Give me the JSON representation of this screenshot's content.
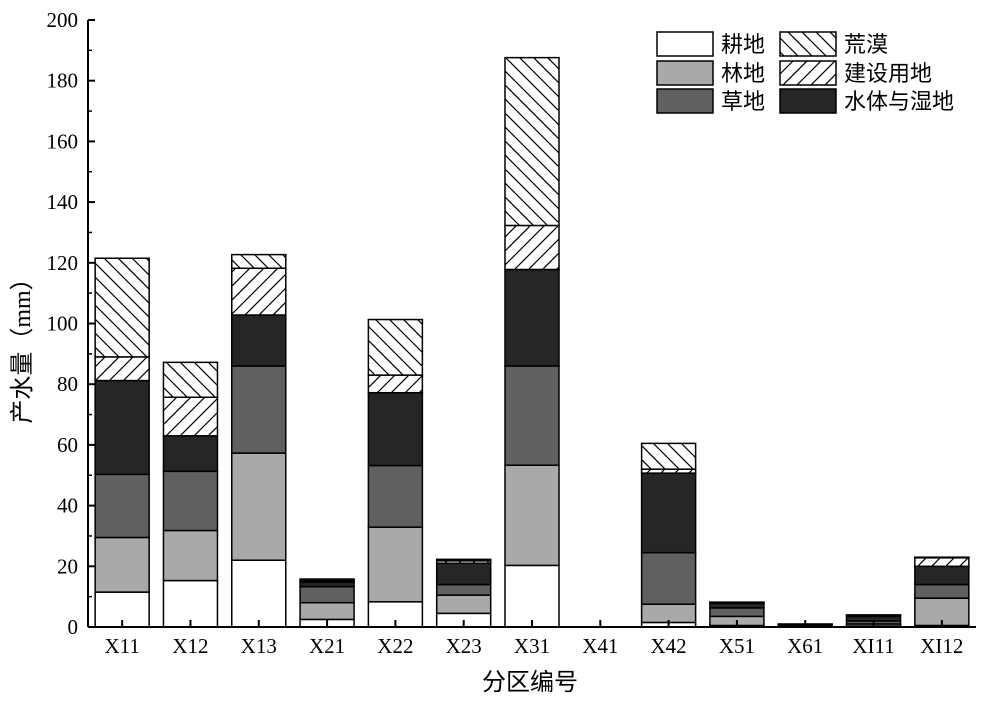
{
  "chart_data": {
    "type": "bar",
    "stacked": true,
    "xlabel": "分区编号",
    "ylabel": "产水量（mm）",
    "ylim": [
      0,
      200
    ],
    "yticks": [
      0,
      20,
      40,
      60,
      80,
      100,
      120,
      140,
      160,
      180,
      200
    ],
    "grid": false,
    "legend_position": "top-right",
    "categories": [
      "X11",
      "X12",
      "X13",
      "X21",
      "X22",
      "X23",
      "X31",
      "X41",
      "X42",
      "X51",
      "X61",
      "XI11",
      "XI12"
    ],
    "series": [
      {
        "name": "耕地",
        "fill": "#ffffff",
        "pattern": "none",
        "values": [
          11.5,
          15.3,
          22.0,
          2.5,
          8.3,
          4.5,
          20.3,
          0,
          1.5,
          0.5,
          0,
          0.3,
          0.5
        ]
      },
      {
        "name": "林地",
        "fill": "#a9a9a9",
        "pattern": "none",
        "values": [
          18.0,
          16.5,
          35.3,
          5.5,
          24.6,
          6.0,
          33.0,
          0,
          6.0,
          3.0,
          0,
          0.7,
          9.0
        ]
      },
      {
        "name": "草地",
        "fill": "#606060",
        "pattern": "none",
        "values": [
          20.8,
          19.5,
          28.7,
          5.3,
          20.3,
          3.5,
          32.7,
          0,
          17.0,
          2.8,
          0.3,
          1.0,
          4.5
        ]
      },
      {
        "name": "水体与湿地",
        "fill": "#262626",
        "pattern": "none",
        "values": [
          30.9,
          11.7,
          16.8,
          1.5,
          24.0,
          7.0,
          31.8,
          0,
          26.2,
          1.5,
          0.5,
          1.5,
          6.0
        ]
      },
      {
        "name": "建设用地",
        "fill": "#ffffff",
        "pattern": "forward",
        "values": [
          7.8,
          12.7,
          15.4,
          0.5,
          5.8,
          0.8,
          14.5,
          0,
          1.3,
          0.2,
          0.2,
          0.3,
          2.8
        ]
      },
      {
        "name": "荒漠",
        "fill": "#ffffff",
        "pattern": "back",
        "values": [
          32.5,
          11.5,
          4.5,
          0.5,
          18.3,
          0.5,
          55.3,
          0,
          8.5,
          0.2,
          0,
          0.2,
          0.2
        ]
      }
    ]
  }
}
